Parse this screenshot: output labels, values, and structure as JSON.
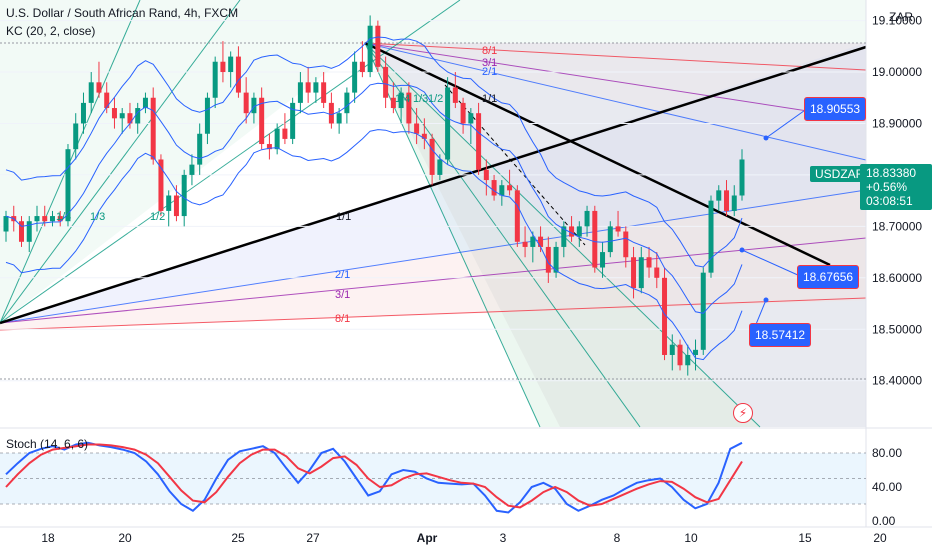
{
  "header": {
    "title": "U.S. Dollar / South African Rand, 4h, FXCM",
    "indicator": "KC (20, 2, close)",
    "currency": "ZAR"
  },
  "colors": {
    "up": "#089981",
    "down": "#f23645",
    "keltner": "#2962ff",
    "stoch_k": "#2962ff",
    "stoch_d": "#f23645",
    "fib_box": "#000000"
  },
  "price_tags": {
    "last_symbol": "USDZAR",
    "last_price": "18.83380",
    "last_change": "+0.56%",
    "countdown": "03:08:51",
    "marker_1": "18.90553",
    "marker_2": "18.67656",
    "marker_3": "18.57412"
  },
  "fan_labels": {
    "upper": [
      "1/4",
      "1/3",
      "1/2"
    ],
    "mid": [
      "1/4",
      "1/3",
      "1/2",
      "1/1"
    ],
    "lower_fan": [
      "8/1",
      "3/1",
      "2/1"
    ],
    "base_fan": [
      "2/1",
      "3/1",
      "8/1"
    ],
    "line_label": "1/1"
  },
  "stoch": {
    "title": "Stoch (14, 6, 6)"
  },
  "chart_data": {
    "type": "candlestick",
    "price_axis": {
      "ticks": [
        19.1,
        19.0,
        18.9,
        18.8,
        18.7,
        18.6,
        18.5,
        18.4
      ],
      "ylim": [
        18.31,
        19.14
      ],
      "labels": [
        "19.10000",
        "19.00000",
        "18.90000",
        "18.80000",
        "18.70000",
        "18.60000",
        "18.50000",
        "18.40000"
      ]
    },
    "x_axis": {
      "labels": [
        "18",
        "20",
        "25",
        "27",
        "Apr",
        "3",
        "8",
        "10",
        "15",
        "20"
      ]
    },
    "candles": [
      [
        18.69,
        18.73,
        18.67,
        18.72
      ],
      [
        18.72,
        18.74,
        18.69,
        18.71
      ],
      [
        18.71,
        18.72,
        18.66,
        18.67
      ],
      [
        18.67,
        18.72,
        18.65,
        18.71
      ],
      [
        18.71,
        18.74,
        18.69,
        18.72
      ],
      [
        18.72,
        18.74,
        18.7,
        18.71
      ],
      [
        18.71,
        18.73,
        18.7,
        18.72
      ],
      [
        18.72,
        18.73,
        18.7,
        18.71
      ],
      [
        18.71,
        18.86,
        18.7,
        18.85
      ],
      [
        18.85,
        18.92,
        18.83,
        18.9
      ],
      [
        18.9,
        18.96,
        18.88,
        18.94
      ],
      [
        18.94,
        19.0,
        18.92,
        18.98
      ],
      [
        18.98,
        19.02,
        18.95,
        18.96
      ],
      [
        18.96,
        18.98,
        18.92,
        18.93
      ],
      [
        18.93,
        18.95,
        18.89,
        18.91
      ],
      [
        18.91,
        18.93,
        18.88,
        18.92
      ],
      [
        18.92,
        18.94,
        18.89,
        18.9
      ],
      [
        18.9,
        18.94,
        18.88,
        18.93
      ],
      [
        18.93,
        18.96,
        18.92,
        18.95
      ],
      [
        18.95,
        18.97,
        18.82,
        18.83
      ],
      [
        18.83,
        18.84,
        18.72,
        18.73
      ],
      [
        18.73,
        18.77,
        18.7,
        18.76
      ],
      [
        18.76,
        18.78,
        18.71,
        18.72
      ],
      [
        18.72,
        18.81,
        18.7,
        18.8
      ],
      [
        18.8,
        18.84,
        18.78,
        18.82
      ],
      [
        18.82,
        18.9,
        18.8,
        18.88
      ],
      [
        18.88,
        18.96,
        18.86,
        18.95
      ],
      [
        18.95,
        19.03,
        18.93,
        19.02
      ],
      [
        19.02,
        19.06,
        18.98,
        19.0
      ],
      [
        19.0,
        19.04,
        18.97,
        19.03
      ],
      [
        19.03,
        19.05,
        18.95,
        18.96
      ],
      [
        18.96,
        18.99,
        18.9,
        18.92
      ],
      [
        18.92,
        18.96,
        18.9,
        18.95
      ],
      [
        18.95,
        18.97,
        18.85,
        18.86
      ],
      [
        18.86,
        18.88,
        18.83,
        18.85
      ],
      [
        18.85,
        18.9,
        18.84,
        18.89
      ],
      [
        18.89,
        18.92,
        18.86,
        18.87
      ],
      [
        18.87,
        18.95,
        18.86,
        18.94
      ],
      [
        18.94,
        19.0,
        18.92,
        18.98
      ],
      [
        18.98,
        19.01,
        18.94,
        18.96
      ],
      [
        18.96,
        18.99,
        18.94,
        18.98
      ],
      [
        18.98,
        19.0,
        18.93,
        18.94
      ],
      [
        18.94,
        18.96,
        18.89,
        18.9
      ],
      [
        18.9,
        18.93,
        18.88,
        18.92
      ],
      [
        18.92,
        18.97,
        18.9,
        18.96
      ],
      [
        18.96,
        19.04,
        18.94,
        19.02
      ],
      [
        19.02,
        19.06,
        18.99,
        19.0
      ],
      [
        19.0,
        19.11,
        18.99,
        19.09
      ],
      [
        19.09,
        19.1,
        19.0,
        19.01
      ],
      [
        19.01,
        19.03,
        18.93,
        18.95
      ],
      [
        18.95,
        18.98,
        18.92,
        18.93
      ],
      [
        18.93,
        18.97,
        18.9,
        18.96
      ],
      [
        18.96,
        18.98,
        18.88,
        18.9
      ],
      [
        18.9,
        18.93,
        18.86,
        18.88
      ],
      [
        18.88,
        18.91,
        18.85,
        18.87
      ],
      [
        18.87,
        18.88,
        18.78,
        18.8
      ],
      [
        18.8,
        18.84,
        18.79,
        18.83
      ],
      [
        18.83,
        18.99,
        18.82,
        18.97
      ],
      [
        18.97,
        19.0,
        18.93,
        18.94
      ],
      [
        18.94,
        18.95,
        18.88,
        18.9
      ],
      [
        18.9,
        18.93,
        18.86,
        18.92
      ],
      [
        18.92,
        18.94,
        18.8,
        18.81
      ],
      [
        18.81,
        18.83,
        18.76,
        18.79
      ],
      [
        18.79,
        18.8,
        18.75,
        18.76
      ],
      [
        18.76,
        18.79,
        18.74,
        18.78
      ],
      [
        18.78,
        18.81,
        18.76,
        18.77
      ],
      [
        18.77,
        18.78,
        18.66,
        18.67
      ],
      [
        18.67,
        18.7,
        18.64,
        18.66
      ],
      [
        18.66,
        18.69,
        18.63,
        18.68
      ],
      [
        18.68,
        18.7,
        18.65,
        18.66
      ],
      [
        18.66,
        18.68,
        18.59,
        18.61
      ],
      [
        18.61,
        18.67,
        18.6,
        18.66
      ],
      [
        18.66,
        18.71,
        18.64,
        18.7
      ],
      [
        18.7,
        18.72,
        18.67,
        18.68
      ],
      [
        18.68,
        18.71,
        18.66,
        18.7
      ],
      [
        18.7,
        18.74,
        18.68,
        18.73
      ],
      [
        18.73,
        18.74,
        18.61,
        18.62
      ],
      [
        18.62,
        18.67,
        18.6,
        18.65
      ],
      [
        18.65,
        18.71,
        18.64,
        18.7
      ],
      [
        18.7,
        18.73,
        18.68,
        18.69
      ],
      [
        18.69,
        18.7,
        18.62,
        18.64
      ],
      [
        18.64,
        18.66,
        18.56,
        18.58
      ],
      [
        18.58,
        18.66,
        18.57,
        18.64
      ],
      [
        18.64,
        18.66,
        18.6,
        18.62
      ],
      [
        18.62,
        18.65,
        18.58,
        18.6
      ],
      [
        18.6,
        18.62,
        18.44,
        18.45
      ],
      [
        18.45,
        18.49,
        18.42,
        18.47
      ],
      [
        18.47,
        18.48,
        18.42,
        18.43
      ],
      [
        18.43,
        18.47,
        18.41,
        18.45
      ],
      [
        18.45,
        18.48,
        18.42,
        18.46
      ],
      [
        18.46,
        18.62,
        18.45,
        18.61
      ],
      [
        18.61,
        18.76,
        18.6,
        18.75
      ],
      [
        18.75,
        18.78,
        18.73,
        18.77
      ],
      [
        18.77,
        18.79,
        18.72,
        18.73
      ],
      [
        18.73,
        18.78,
        18.72,
        18.76
      ],
      [
        18.76,
        18.85,
        18.75,
        18.83
      ]
    ],
    "stoch_k": [
      55,
      68,
      80,
      85,
      88,
      84,
      90,
      92,
      89,
      87,
      84,
      80,
      70,
      55,
      35,
      20,
      12,
      25,
      50,
      72,
      82,
      85,
      88,
      80,
      62,
      45,
      60,
      80,
      85,
      70,
      50,
      30,
      35,
      55,
      60,
      58,
      50,
      45,
      44,
      43,
      44,
      30,
      12,
      10,
      22,
      40,
      45,
      38,
      20,
      12,
      18,
      25,
      30,
      38,
      45,
      48,
      50,
      40,
      25,
      15,
      20,
      45,
      85,
      92
    ],
    "stoch_d": [
      40,
      55,
      68,
      78,
      84,
      86,
      88,
      90,
      90,
      89,
      87,
      84,
      78,
      68,
      52,
      36,
      24,
      22,
      34,
      52,
      68,
      78,
      84,
      84,
      76,
      62,
      56,
      64,
      74,
      76,
      66,
      50,
      40,
      42,
      50,
      55,
      56,
      52,
      48,
      45,
      44,
      40,
      28,
      18,
      16,
      24,
      34,
      40,
      34,
      24,
      18,
      20,
      26,
      32,
      38,
      43,
      47,
      46,
      38,
      28,
      22,
      26,
      48,
      70
    ],
    "stoch_axis": {
      "ticks": [
        80,
        40,
        0
      ],
      "labels": [
        "80.00",
        "40.00",
        "0.00"
      ],
      "ylim": [
        0,
        100
      ]
    }
  }
}
